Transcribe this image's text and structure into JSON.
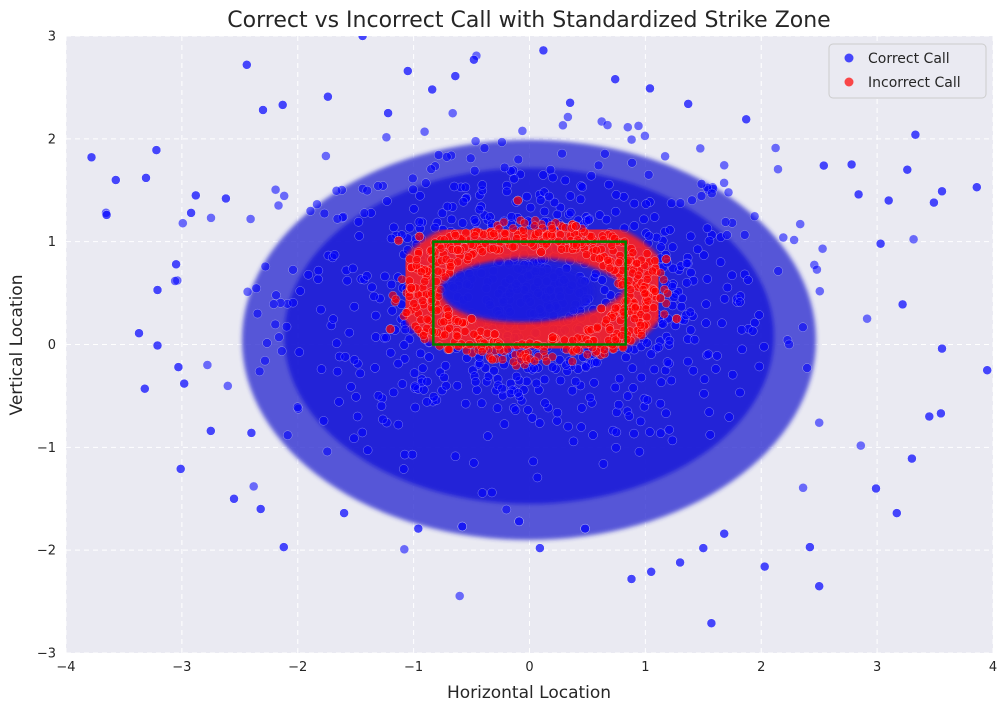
{
  "chart_data": {
    "type": "scatter",
    "title": "Correct vs Incorrect Call with Standardized Strike Zone",
    "xlabel": "Horizontal Location",
    "ylabel": "Vertical Location",
    "xlim": [
      -4,
      4
    ],
    "ylim": [
      -3,
      3
    ],
    "x_ticks": [
      -4,
      -3,
      -2,
      -1,
      0,
      1,
      2,
      3,
      4
    ],
    "y_ticks": [
      -3,
      -2,
      -1,
      0,
      1,
      2,
      3
    ],
    "grid": true,
    "legend_position": "top-right",
    "series": [
      {
        "name": "Correct Call",
        "color": "#0000ff",
        "points": [
          [
            -3.78,
            1.82
          ],
          [
            -3.65,
            1.26
          ],
          [
            -3.57,
            1.6
          ],
          [
            -3.31,
            1.62
          ],
          [
            -3.22,
            1.89
          ],
          [
            -3.37,
            0.11
          ],
          [
            -3.32,
            -0.43
          ],
          [
            -3.21,
            0.53
          ],
          [
            -3.21,
            -0.01
          ],
          [
            -3.05,
            0.78
          ],
          [
            -3.03,
            -0.22
          ],
          [
            -3.01,
            -1.21
          ],
          [
            -2.98,
            -0.38
          ],
          [
            -2.92,
            1.28
          ],
          [
            -2.88,
            1.45
          ],
          [
            -2.75,
            -0.84
          ],
          [
            -2.62,
            1.42
          ],
          [
            -2.55,
            -1.5
          ],
          [
            -2.44,
            2.72
          ],
          [
            -2.4,
            -0.86
          ],
          [
            -2.3,
            2.28
          ],
          [
            -2.32,
            -1.6
          ],
          [
            -2.12,
            -1.97
          ],
          [
            -2.13,
            2.33
          ],
          [
            -1.74,
            2.41
          ],
          [
            -1.6,
            -1.64
          ],
          [
            -1.44,
            3.0
          ],
          [
            -1.22,
            2.25
          ],
          [
            -1.05,
            2.66
          ],
          [
            -0.96,
            -1.79
          ],
          [
            -0.84,
            2.48
          ],
          [
            -0.64,
            2.61
          ],
          [
            -0.58,
            -1.77
          ],
          [
            -0.48,
            2.77
          ],
          [
            -0.09,
            -1.72
          ],
          [
            0.09,
            -1.98
          ],
          [
            0.12,
            2.86
          ],
          [
            0.35,
            2.35
          ],
          [
            0.48,
            -1.79
          ],
          [
            0.74,
            2.58
          ],
          [
            0.88,
            -2.28
          ],
          [
            1.04,
            2.49
          ],
          [
            1.05,
            -2.21
          ],
          [
            1.3,
            -2.12
          ],
          [
            1.37,
            2.34
          ],
          [
            1.5,
            -1.98
          ],
          [
            1.57,
            -2.71
          ],
          [
            1.68,
            -1.84
          ],
          [
            1.87,
            2.19
          ],
          [
            2.03,
            -2.16
          ],
          [
            2.42,
            -1.97
          ],
          [
            2.5,
            -2.35
          ],
          [
            2.54,
            1.74
          ],
          [
            2.78,
            1.75
          ],
          [
            2.84,
            1.46
          ],
          [
            2.99,
            -1.4
          ],
          [
            3.03,
            0.98
          ],
          [
            3.1,
            1.4
          ],
          [
            3.17,
            -1.64
          ],
          [
            3.26,
            1.7
          ],
          [
            3.3,
            -1.11
          ],
          [
            3.33,
            2.04
          ],
          [
            3.45,
            -0.7
          ],
          [
            3.49,
            1.38
          ],
          [
            3.55,
            -0.67
          ],
          [
            3.56,
            1.49
          ],
          [
            3.56,
            -0.04
          ],
          [
            3.86,
            1.53
          ],
          [
            3.95,
            -0.25
          ],
          [
            3.22,
            0.39
          ]
        ]
      },
      {
        "name": "Incorrect Call",
        "color": "#ff0000",
        "points": [
          [
            -1.2,
            0.15
          ],
          [
            -1.13,
            1.01
          ],
          [
            -1.02,
            0.55
          ],
          [
            -0.95,
            1.05
          ],
          [
            -0.62,
            0.92
          ],
          [
            -0.5,
            0.25
          ],
          [
            -0.3,
            0.1
          ],
          [
            -0.1,
            1.4
          ],
          [
            0.1,
            0.9
          ],
          [
            0.2,
            0.07
          ],
          [
            0.4,
            1.15
          ],
          [
            0.62,
            0.35
          ],
          [
            1.13,
            0.45
          ],
          [
            1.18,
            0.83
          ],
          [
            1.27,
            0.25
          ]
        ]
      }
    ],
    "strike_zone": {
      "x_range": [
        -0.83,
        0.83
      ],
      "y_range": [
        0,
        1
      ],
      "color": "#008000"
    }
  }
}
